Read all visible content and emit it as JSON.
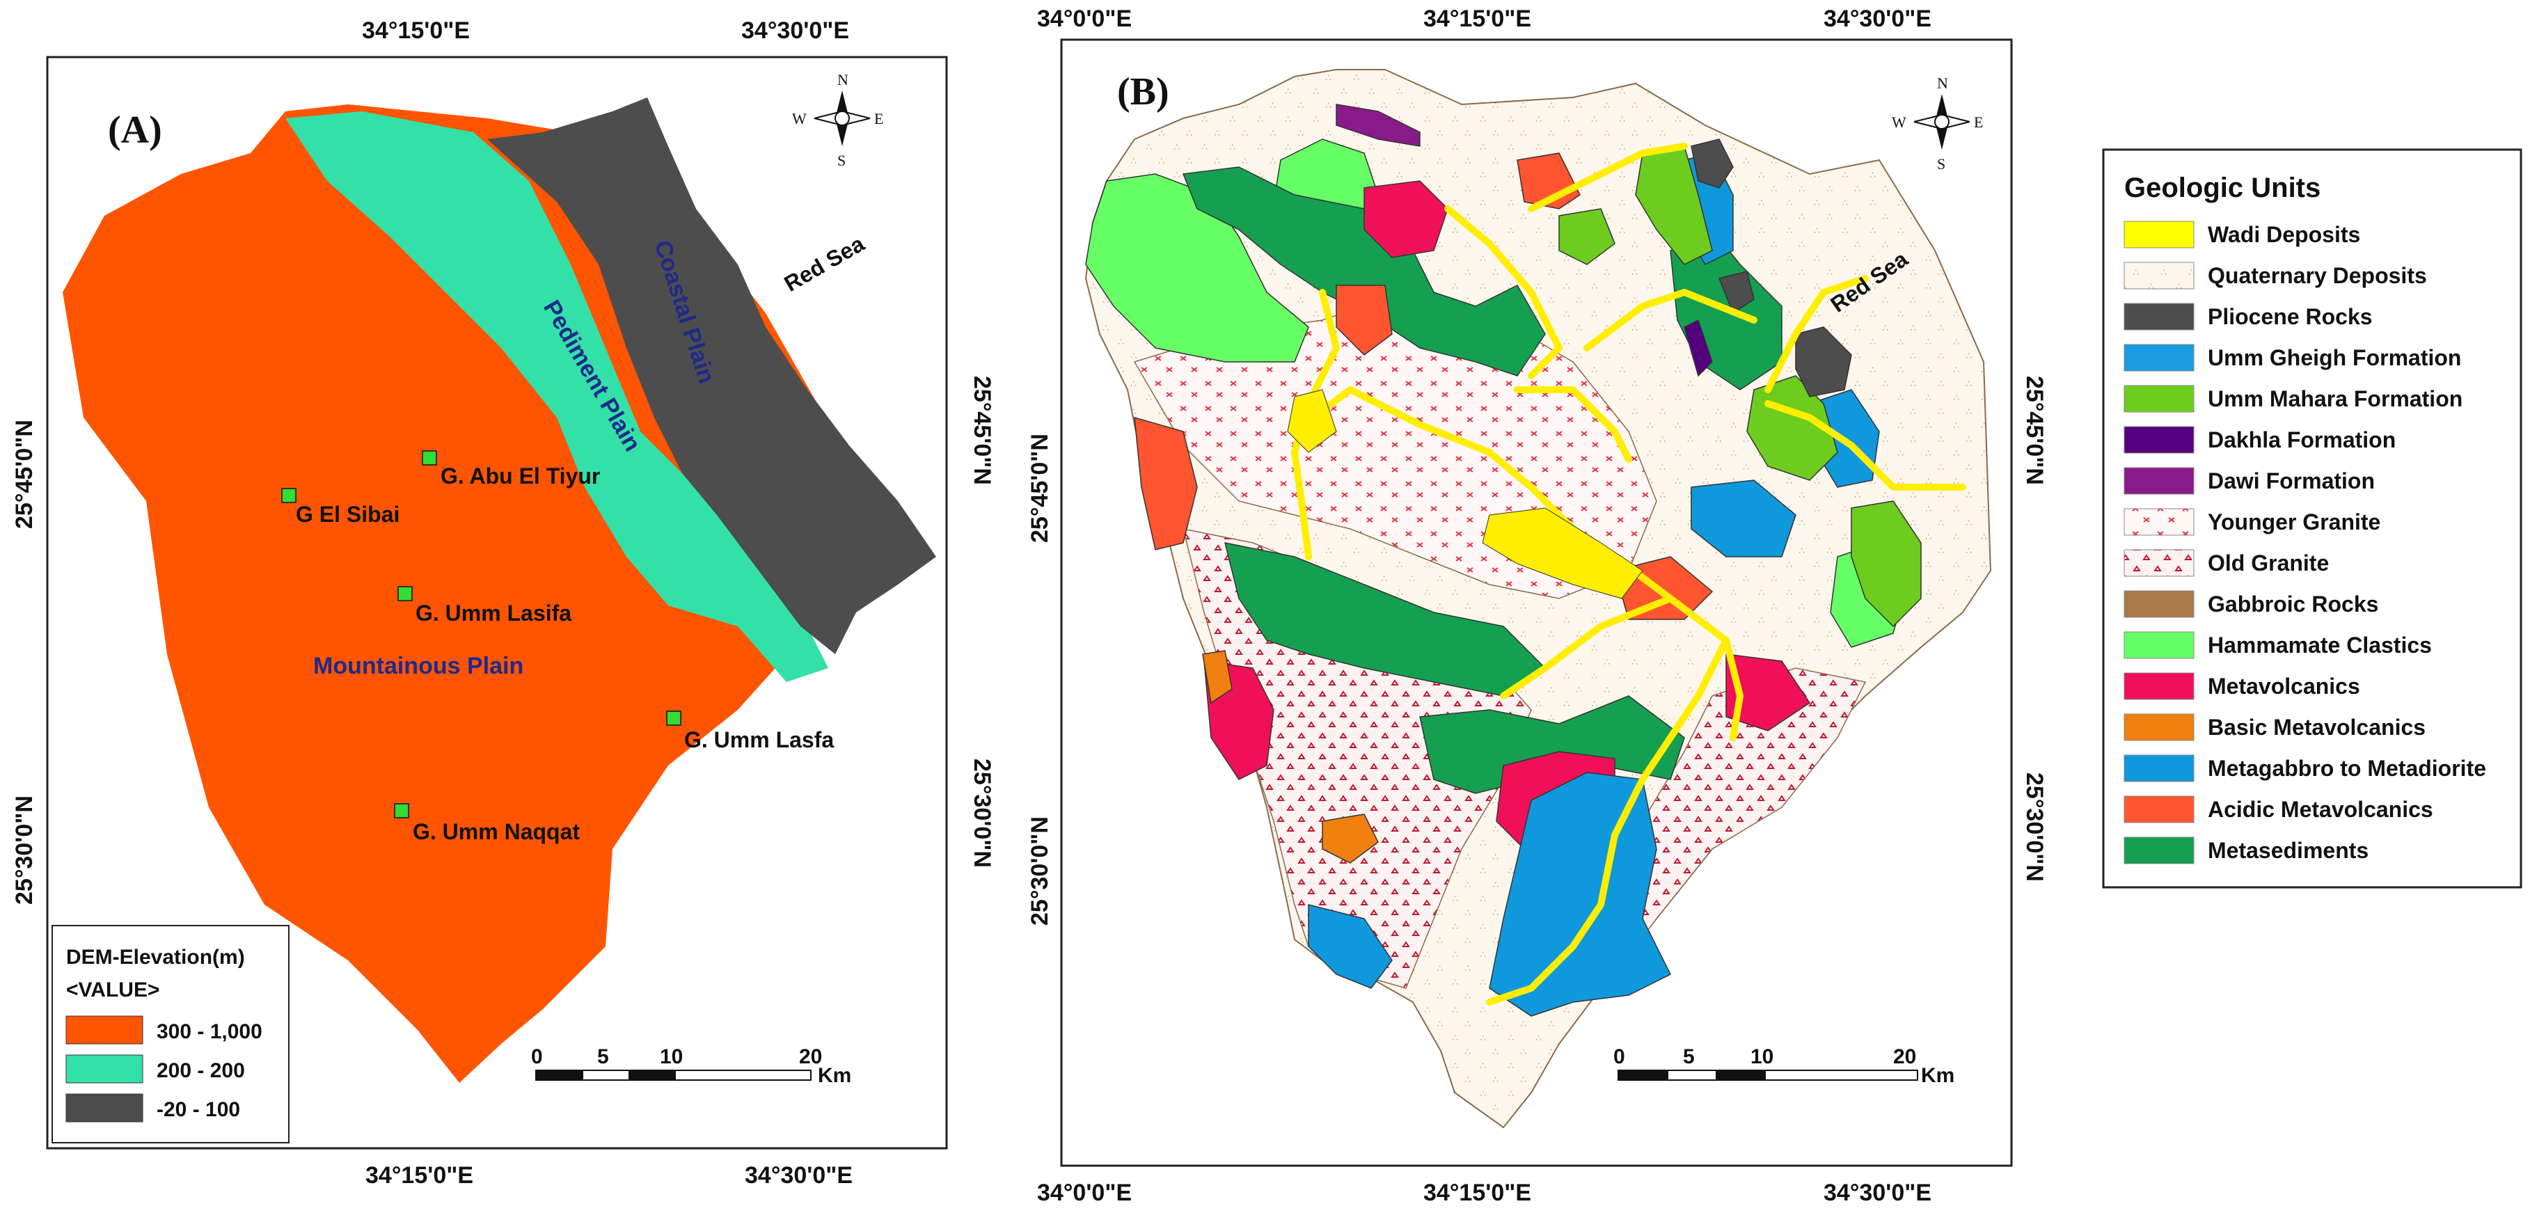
{
  "panel_a": {
    "label": "(A)",
    "top_ticks": [
      "34°15'0\"E",
      "34°30'0\"E"
    ],
    "bottom_ticks": [
      "34°15'0\"E",
      "34°30'0\"E"
    ],
    "left_ticks": [
      "25°45'0\"N",
      "25°30'0\"N"
    ],
    "right_ticks": [
      "25°45'0\"N",
      "25°30'0\"N"
    ],
    "regions": {
      "coastal": "Coastal Plain",
      "pediment": "Pediment Plain",
      "mountainous": "Mountainous Plain",
      "sea": "Red Sea"
    },
    "sites": [
      "G. Abu El Tiyur",
      "G El Sibai",
      "G. Umm Lasifa",
      "G. Umm Lasfa",
      "G. Umm Naqqat"
    ],
    "legend": {
      "title": "DEM-Elevation(m)",
      "subtitle": "<VALUE>",
      "items": [
        {
          "label": "300 - 1,000",
          "color": "#ff5500"
        },
        {
          "label": "200 - 200",
          "color": "#33e0a8"
        },
        {
          "label": "-20 - 100",
          "color": "#4d4d4d"
        }
      ]
    },
    "scale": {
      "ticks": [
        "0",
        "5",
        "10",
        "20"
      ],
      "unit": "Km"
    }
  },
  "panel_b": {
    "label": "(B)",
    "top_ticks": [
      "34°0'0\"E",
      "34°15'0\"E",
      "34°30'0\"E"
    ],
    "bottom_ticks": [
      "34°0'0\"E",
      "34°15'0\"E",
      "34°30'0\"E"
    ],
    "left_ticks": [
      "25°45'0\"N",
      "25°30'0\"N"
    ],
    "right_ticks": [
      "25°45'0\"N",
      "25°30'0\"N"
    ],
    "sea": "Red Sea",
    "scale": {
      "ticks": [
        "0",
        "5",
        "10",
        "20"
      ],
      "unit": "Km"
    }
  },
  "compass": {
    "n": "N",
    "s": "S",
    "e": "E",
    "w": "W"
  },
  "geologic_legend": {
    "title": "Geologic Units",
    "items": [
      {
        "label": "Wadi Deposits",
        "color": "#ffff00"
      },
      {
        "label": "Quaternary Deposits",
        "color": "#fdf6ec"
      },
      {
        "label": "Pliocene Rocks",
        "color": "#4d4d4d"
      },
      {
        "label": "Umm Gheigh Formation",
        "color": "#1a9be0"
      },
      {
        "label": "Umm Mahara Formation",
        "color": "#6dcc1e"
      },
      {
        "label": "Dakhla Formation",
        "color": "#55007f"
      },
      {
        "label": "Dawi Formation",
        "color": "#8a1a8a"
      },
      {
        "label": "Younger Granite",
        "color": "#fff4f4"
      },
      {
        "label": "Old Granite",
        "color": "#fdf0f0"
      },
      {
        "label": "Gabbroic Rocks",
        "color": "#a8784a"
      },
      {
        "label": "Hammamate Clastics",
        "color": "#66ff66"
      },
      {
        "label": "Metavolcanics",
        "color": "#f0105a"
      },
      {
        "label": "Basic Metavolcanics",
        "color": "#f08010"
      },
      {
        "label": "Metagabbro to Metadiorite",
        "color": "#0f98dc"
      },
      {
        "label": "Acidic Metavolcanics",
        "color": "#ff5530"
      },
      {
        "label": "Metasediments",
        "color": "#14a050"
      }
    ]
  }
}
